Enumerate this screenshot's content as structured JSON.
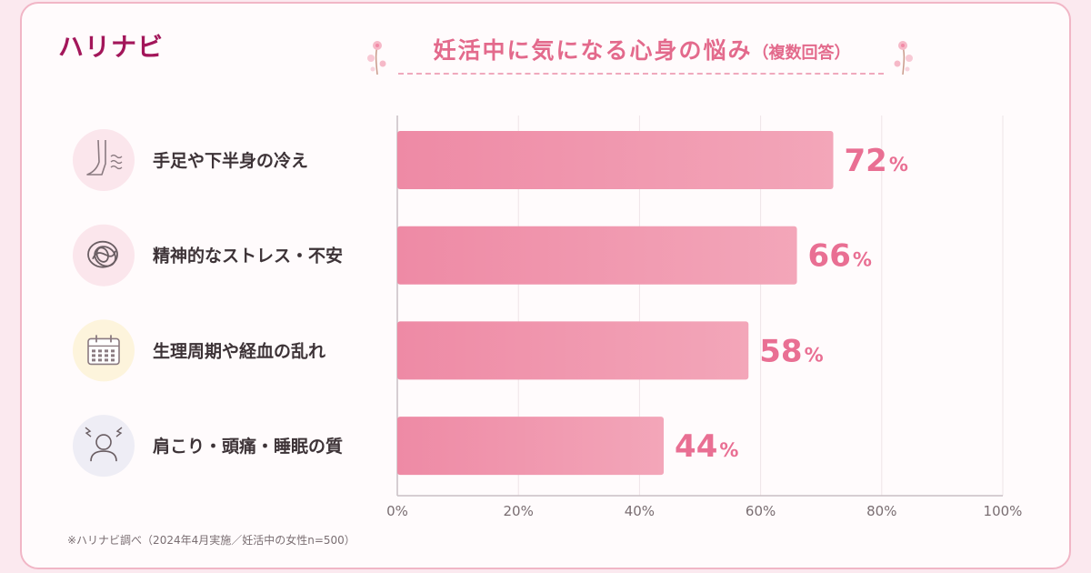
{
  "brand": {
    "logo": "ハリナビ"
  },
  "header": {
    "title": "妊活中に気になる心身の悩み",
    "subtitle": "（複数回答）"
  },
  "colors": {
    "bar": "#ee8aa5",
    "bar_light": "#f3a6b9",
    "value_text": "#e96f93",
    "title": "#e36a8c",
    "logo": "#a3165a",
    "grid": "#eee4e7",
    "axis": "#c9bfc3",
    "icon_bg": [
      "#fbe6ec",
      "#fbe6ec",
      "#fdf4dc",
      "#eeedf5"
    ]
  },
  "chart_data": {
    "type": "bar",
    "orientation": "horizontal",
    "categories": [
      "手足や下半身の冷え",
      "精神的なストレス・不安",
      "生理周期や経血の乱れ",
      "肩こり・頭痛・睡眠の質"
    ],
    "values": [
      72,
      66,
      58,
      44
    ],
    "value_unit": "%",
    "icons": [
      "leg-cold-icon",
      "tangled-stress-icon",
      "calendar-icon",
      "headache-person-icon"
    ],
    "xlim": [
      0,
      100
    ],
    "xticks": [
      0,
      20,
      40,
      60,
      80,
      100
    ],
    "xtick_labels": [
      "0%",
      "20%",
      "40%",
      "60%",
      "80%",
      "100%"
    ],
    "grid": true,
    "legend": "none"
  },
  "footnote": "※ハリナビ調べ（2024年4月実施／妊活中の女性n=500）"
}
